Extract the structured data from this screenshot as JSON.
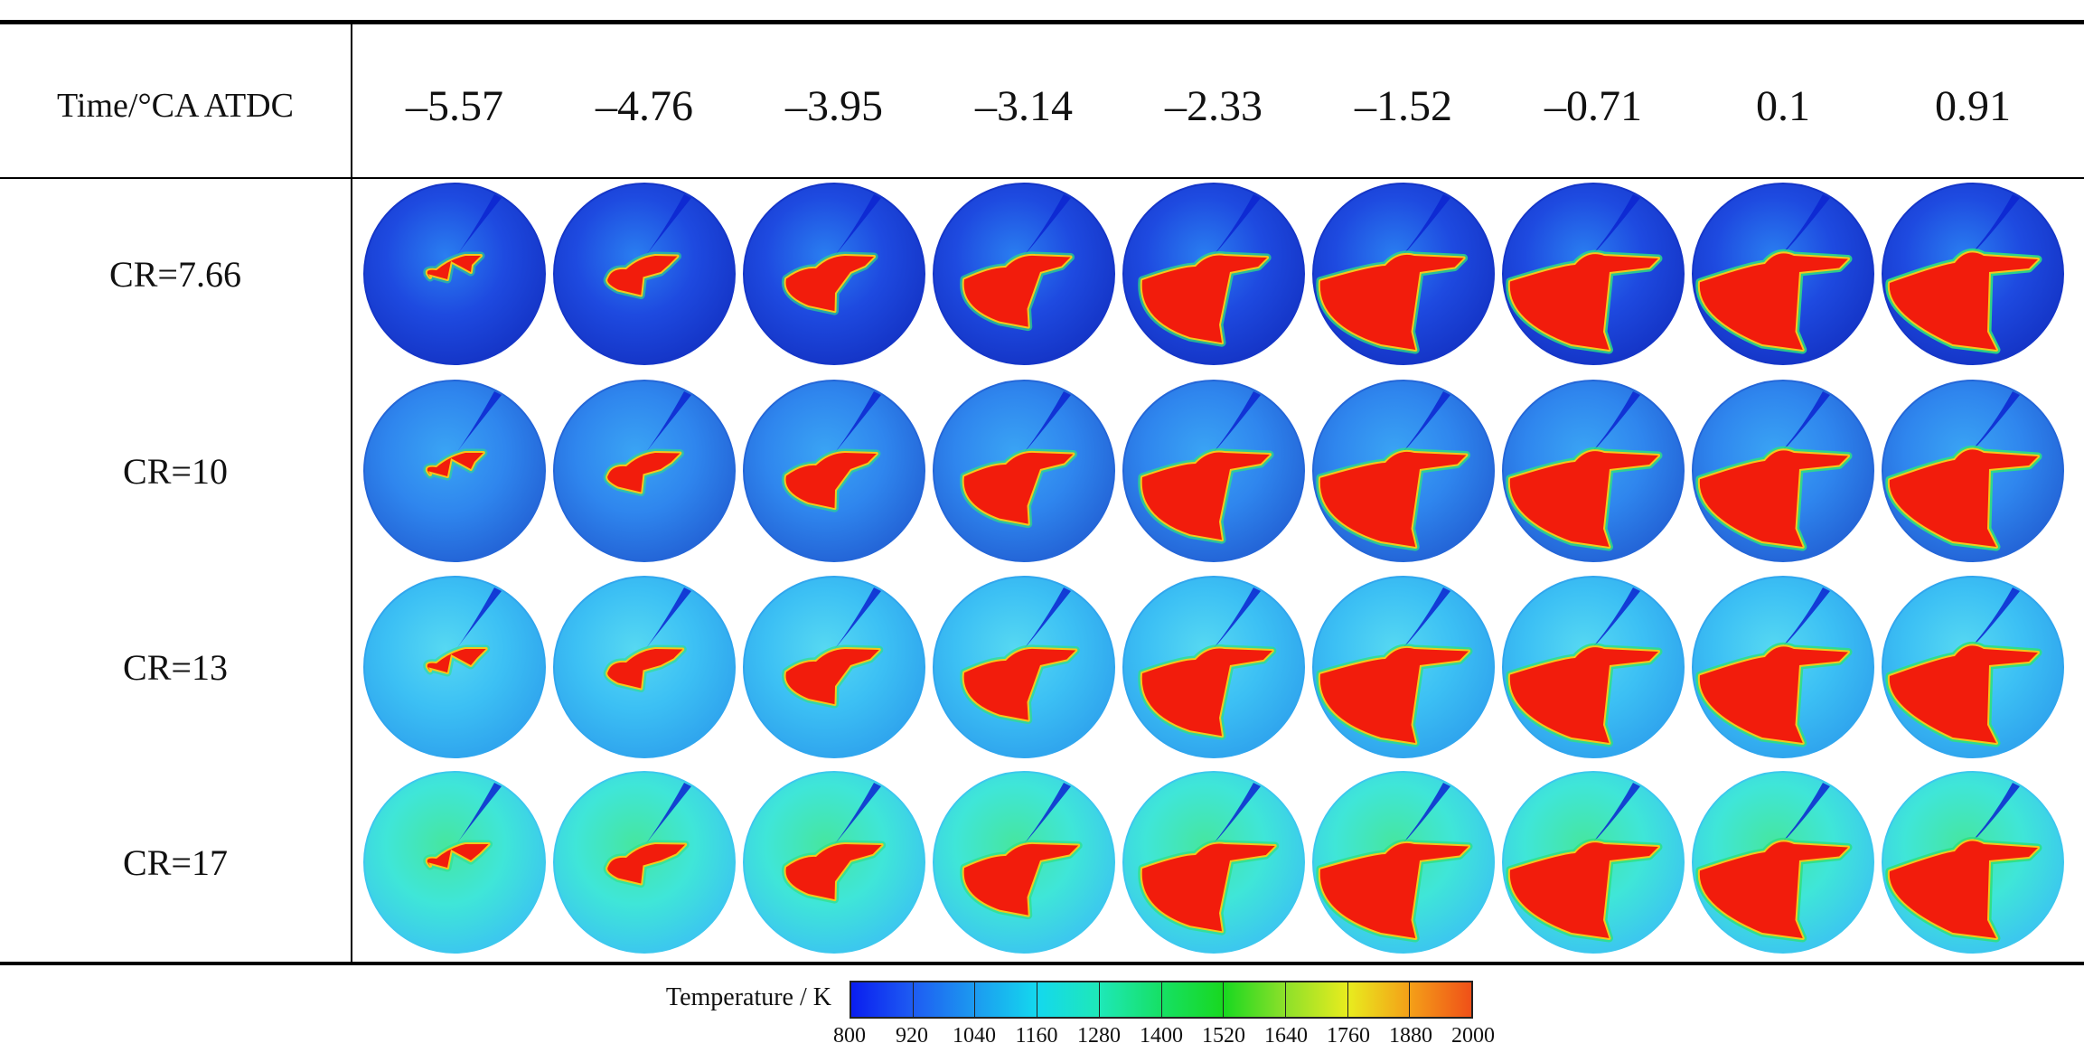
{
  "header": {
    "axis_label": "Time/°CA ATDC",
    "times": [
      "–5.57",
      "–4.76",
      "–3.95",
      "–3.14",
      "–2.33",
      "–1.52",
      "–0.71",
      "0.1",
      "0.91"
    ]
  },
  "rows": [
    {
      "label": "CR=7.66",
      "bg": "#1e4ae0",
      "bg_edge": "#1536c8",
      "ambient": "#2a7ef0"
    },
    {
      "label": "CR=10",
      "bg": "#2f86ee",
      "bg_edge": "#2466d8",
      "ambient": "#3aa4f4"
    },
    {
      "label": "CR=13",
      "bg": "#3cc0f4",
      "bg_edge": "#30a6ee",
      "ambient": "#56d8f2"
    },
    {
      "label": "CR=17",
      "bg": "#3fe6d8",
      "bg_edge": "#3cc8ee",
      "ambient": "#46e6a0"
    }
  ],
  "colorbar": {
    "title": "Temperature / K",
    "ticks": [
      "800",
      "920",
      "1040",
      "1160",
      "1280",
      "1400",
      "1520",
      "1640",
      "1760",
      "1880",
      "2000"
    ],
    "colors": [
      "#0a1ef0",
      "#1e5cf2",
      "#1c9af0",
      "#14d8ee",
      "#1ee8b8",
      "#16e064",
      "#18d820",
      "#8ee02a",
      "#e8ec1e",
      "#f4a018",
      "#f05018",
      "#ee1a10"
    ]
  },
  "flame": {
    "hot": "#f21c0c",
    "edge": "#f4c81c",
    "ring": "#2ee080",
    "jet": "#0c24d0"
  }
}
